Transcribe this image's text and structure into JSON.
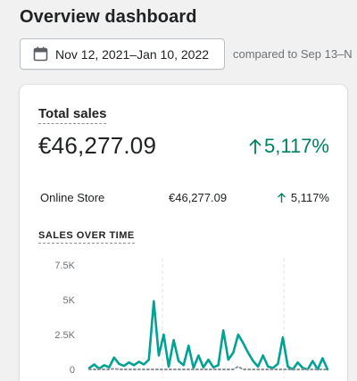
{
  "page": {
    "title": "Overview dashboard"
  },
  "date_picker": {
    "range_label": "Nov 12, 2021–Jan 10, 2022",
    "icon": "calendar-icon",
    "compare_text": "compared to Sep 13–N"
  },
  "total_sales": {
    "title": "Total sales",
    "value": "€46,277.09",
    "change": "5,117%",
    "change_color": "#008060",
    "rows": [
      {
        "label": "Online Store",
        "value": "€46,277.09",
        "change": "5,117%"
      }
    ]
  },
  "sales_over_time": {
    "label": "SALES OVER TIME"
  },
  "chart_data": {
    "type": "line",
    "y_ticks": [
      "7.5K",
      "5K",
      "2.5K",
      "0"
    ],
    "ylim": [
      0,
      7500
    ],
    "grid": true,
    "series": [
      {
        "color": "#00a393",
        "values": [
          100,
          350,
          50,
          300,
          150,
          850,
          400,
          250,
          500,
          300,
          550,
          350,
          700,
          4900,
          1000,
          2500,
          200,
          2100,
          600,
          300,
          1700,
          100,
          1000,
          150,
          700,
          150,
          300,
          2800,
          700,
          1200,
          2500,
          1900,
          1200,
          600,
          200,
          1000,
          200,
          100,
          400,
          2300,
          200,
          0,
          500,
          100,
          0,
          600,
          0,
          800,
          0
        ]
      },
      {
        "color": "#8c9196",
        "dashed": true,
        "values": [
          0,
          0,
          0,
          0,
          0,
          50,
          0,
          0,
          0,
          0,
          0,
          0,
          0,
          0,
          0,
          0,
          0,
          0,
          0,
          0,
          0,
          0,
          0,
          0,
          0,
          0,
          0,
          0,
          0,
          0,
          200,
          0,
          0,
          0,
          0,
          0,
          0,
          0,
          0,
          0,
          0,
          0,
          0,
          0,
          0,
          0,
          0,
          0,
          0
        ]
      }
    ]
  }
}
